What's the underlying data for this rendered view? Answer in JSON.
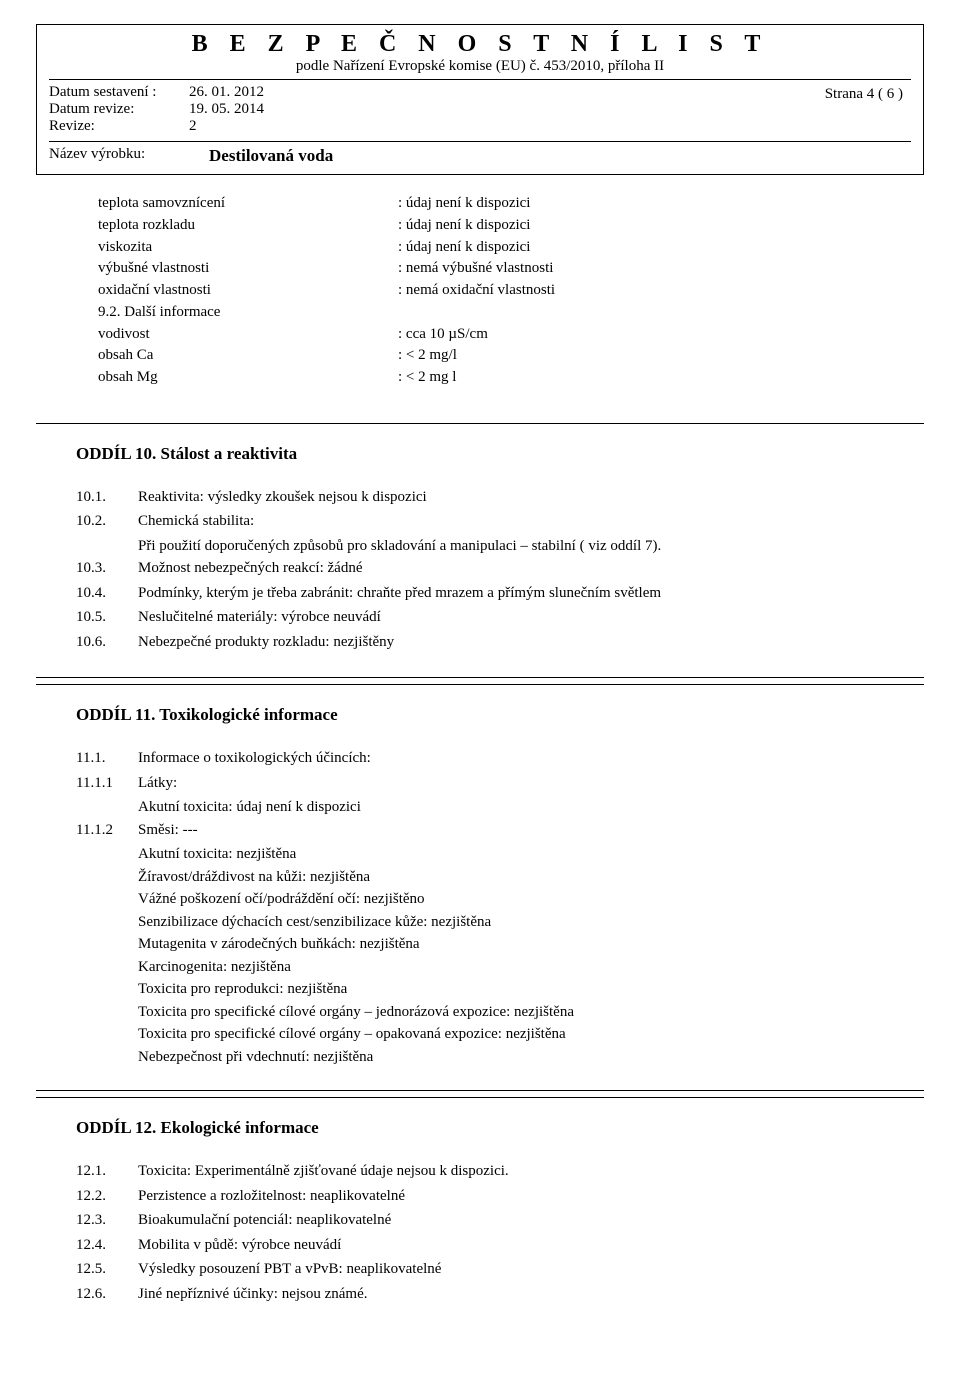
{
  "header": {
    "title_text": "B E Z P E Č N O S T N Í    L I S T",
    "subtitle": "podle Nařízení Evropské komise (EU) č. 453/2010, příloha II",
    "row1_label": "Datum sestavení :",
    "row1_value": "26. 01. 2012",
    "row2_label": "Datum revize:",
    "row2_value": "19. 05. 2014",
    "row3_label": "Revize:",
    "row3_value": "2",
    "page_info": "Strana 4 ( 6 )",
    "name_label": "Název  výrobku:",
    "name_value": "Destilovaná voda"
  },
  "props": {
    "rows": [
      {
        "k": "teplota samovznícení",
        "v": ": údaj není k dispozici"
      },
      {
        "k": "teplota rozkladu",
        "v": ": údaj není k dispozici"
      },
      {
        "k": "viskozita",
        "v": ": údaj není k dispozici"
      },
      {
        "k": "výbušné vlastnosti",
        "v": ": nemá výbušné vlastnosti"
      },
      {
        "k": "oxidační vlastnosti",
        "v": ": nemá oxidační vlastnosti"
      },
      {
        "k": "9.2. Další informace",
        "v": ""
      },
      {
        "k": "vodivost",
        "v": ": cca 10 µS/cm"
      },
      {
        "k": "obsah Ca",
        "v": ": < 2 mg/l"
      },
      {
        "k": "obsah Mg",
        "v": ": < 2 mg l"
      }
    ]
  },
  "sec10": {
    "heading": "ODDÍL 10. Stálost a reaktivita",
    "items": [
      {
        "n": "10.1.",
        "t": "Reaktivita: výsledky zkoušek nejsou k dispozici"
      },
      {
        "n": "10.2.",
        "t": "Chemická stabilita:"
      },
      {
        "n": "",
        "t": "Při použití doporučených způsobů pro skladování a manipulaci – stabilní ( viz oddíl 7).",
        "sub": true
      },
      {
        "n": "10.3.",
        "t": "Možnost nebezpečných reakcí: žádné"
      },
      {
        "n": "10.4.",
        "t": "Podmínky, kterým je třeba zabránit: chraňte před mrazem a přímým slunečním světlem"
      },
      {
        "n": "10.5.",
        "t": "Neslučitelné materiály: výrobce neuvádí"
      },
      {
        "n": "10.6.",
        "t": "Nebezpečné produkty rozkladu: nezjištěny"
      }
    ]
  },
  "sec11": {
    "heading": "ODDÍL 11.   Toxikologické informace",
    "r1_n": "11.1.",
    "r1_t": "Informace o toxikologických účincích:",
    "r2_n": "11.1.1",
    "r2_t": "Látky:",
    "r2_sub": "Akutní toxicita: údaj není k dispozici",
    "r3_n": "11.1.2",
    "r3_t": "Směsi: ---",
    "lines": [
      "Akutní toxicita: nezjištěna",
      "Žíravost/dráždivost na kůži: nezjištěna",
      "Vážné poškození očí/podráždění očí: nezjištěno",
      "Senzibilizace dýchacích cest/senzibilizace kůže: nezjištěna",
      "Mutagenita v zárodečných buňkách: nezjištěna",
      "Karcinogenita: nezjištěna",
      "Toxicita pro reprodukci: nezjištěna",
      "Toxicita pro specifické cílové orgány – jednorázová expozice: nezjištěna",
      "Toxicita pro specifické cílové orgány – opakovaná expozice: nezjištěna",
      "Nebezpečnost při vdechnutí: nezjištěna"
    ]
  },
  "sec12": {
    "heading": "ODDÍL 12. Ekologické  informace",
    "items": [
      {
        "n": "12.1.",
        "t": "Toxicita: Experimentálně zjišťované údaje nejsou k dispozici."
      },
      {
        "n": "12.2.",
        "t": "Perzistence a rozložitelnost: neaplikovatelné"
      },
      {
        "n": "12.3.",
        "t": "Bioakumulační potenciál: neaplikovatelné"
      },
      {
        "n": "12.4.",
        "t": "Mobilita v půdě:  výrobce neuvádí"
      },
      {
        "n": "12.5.",
        "t": "Výsledky posouzení PBT a vPvB:  neaplikovatelné"
      },
      {
        "n": "12.6.",
        "t": "Jiné nepříznivé účinky:  nejsou známé."
      }
    ]
  }
}
